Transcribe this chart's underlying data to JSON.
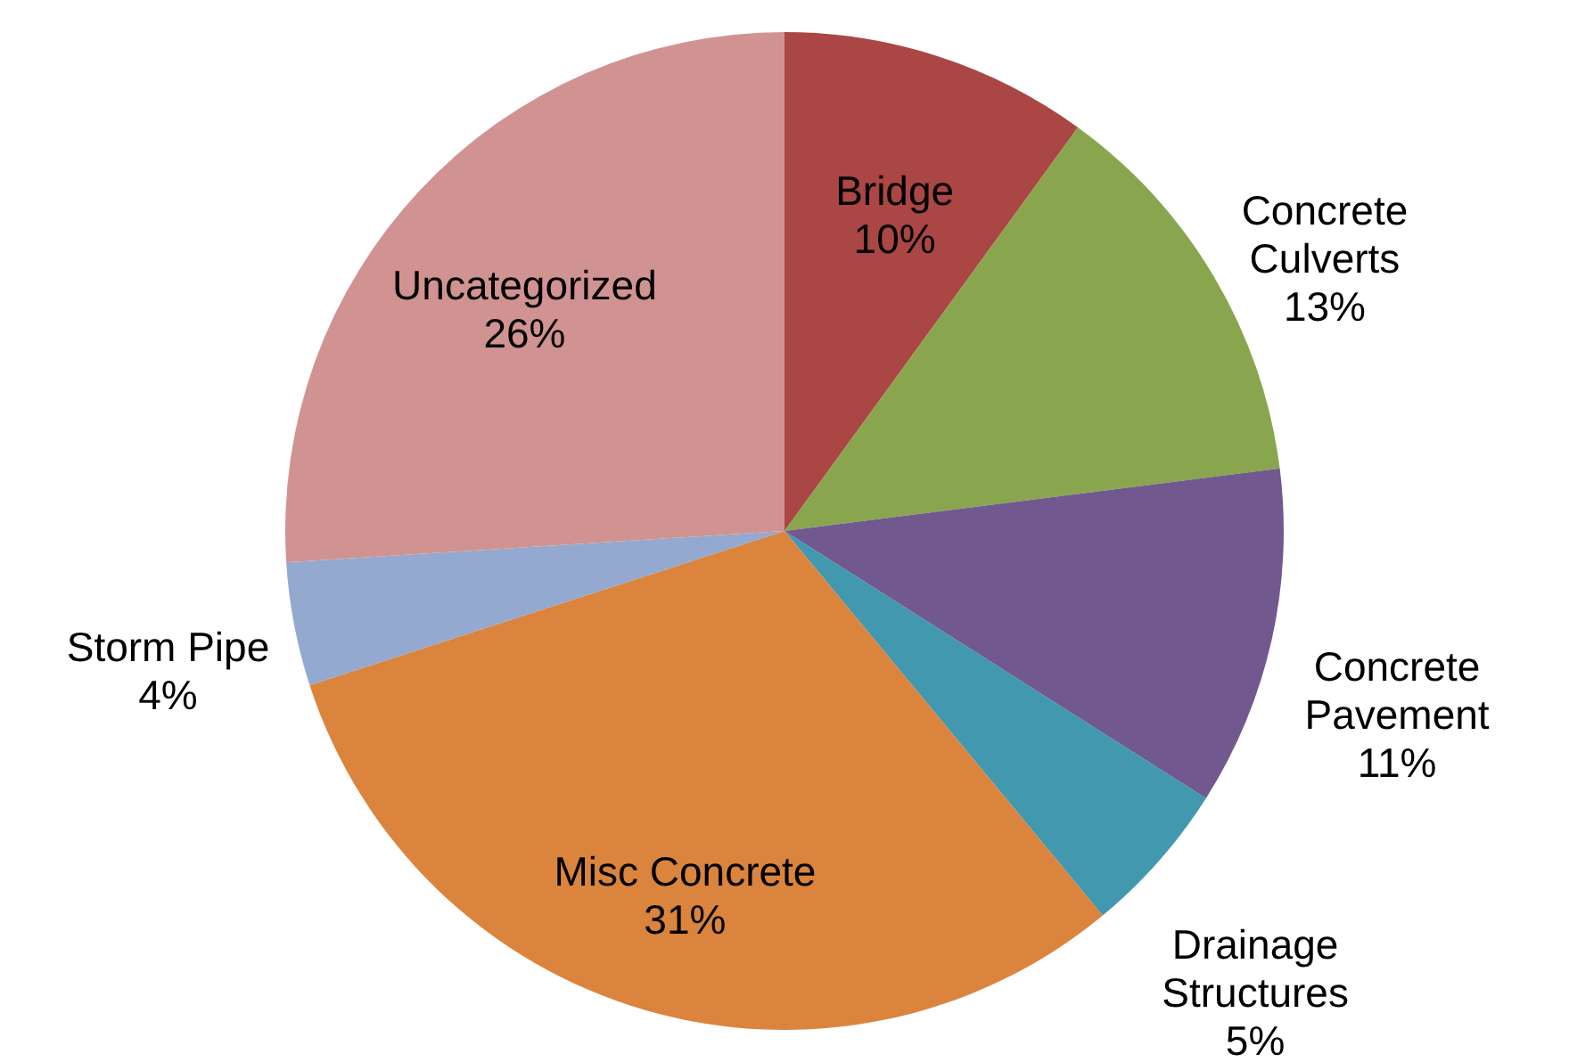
{
  "chart_data": {
    "type": "pie",
    "categories": [
      "Bridge",
      "Concrete Culverts",
      "Concrete Pavement",
      "Drainage Structures",
      "Misc Concrete",
      "Storm Pipe",
      "Uncategorized"
    ],
    "values": [
      10,
      13,
      11,
      5,
      31,
      4,
      26
    ],
    "value_labels": [
      "10%",
      "13%",
      "11%",
      "5%",
      "31%",
      "4%",
      "26%"
    ],
    "colors": [
      "#aa4643",
      "#89a54e",
      "#71588f",
      "#4198af",
      "#db843d",
      "#93a9cf",
      "#d19392"
    ]
  }
}
